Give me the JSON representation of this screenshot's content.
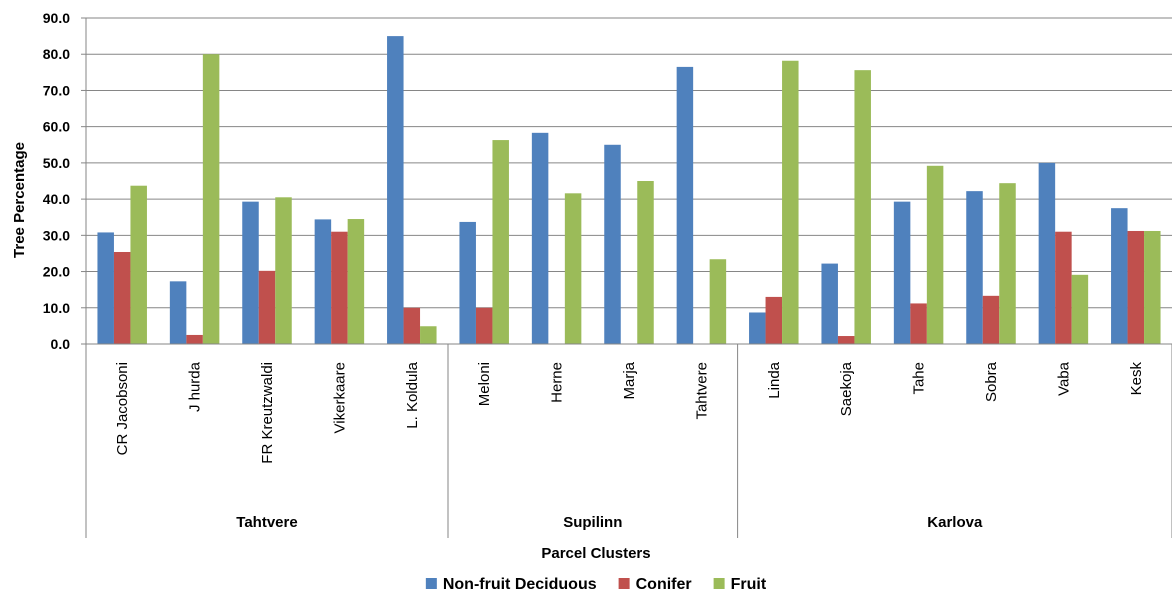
{
  "chart_data": {
    "type": "bar",
    "xlabel": "Parcel Clusters",
    "ylabel": "Tree Percentage",
    "ylim": [
      0,
      90
    ],
    "yticks": [
      "0.0",
      "10.0",
      "20.0",
      "30.0",
      "40.0",
      "50.0",
      "60.0",
      "70.0",
      "80.0",
      "90.0"
    ],
    "grid": true,
    "legend_position": "bottom",
    "groups": [
      {
        "label": "Tahtvere",
        "categories": [
          "CR Jacobsoni",
          "J hurda",
          "FR Kreutzwaldi",
          "Vikerkaare",
          "L. Koldula"
        ]
      },
      {
        "label": "Supilinn",
        "categories": [
          "Meloni",
          "Herne",
          "Marja",
          "Tahtvere"
        ]
      },
      {
        "label": "Karlova",
        "categories": [
          "Linda",
          "Saekoja",
          "Tahe",
          "Sobra",
          "Vaba",
          "Kesk"
        ]
      }
    ],
    "categories": [
      "CR Jacobsoni",
      "J hurda",
      "FR Kreutzwaldi",
      "Vikerkaare",
      "L. Koldula",
      "Meloni",
      "Herne",
      "Marja",
      "Tahtvere",
      "Linda",
      "Saekoja",
      "Tahe",
      "Sobra",
      "Vaba",
      "Kesk"
    ],
    "series": [
      {
        "name": "Non-fruit Deciduous",
        "color": "#4F81BD",
        "values": [
          30.8,
          17.3,
          39.3,
          34.4,
          85.0,
          33.7,
          58.3,
          55.0,
          76.5,
          8.7,
          22.2,
          39.3,
          42.2,
          50.0,
          37.5
        ]
      },
      {
        "name": "Conifer",
        "color": "#C0504D",
        "values": [
          25.4,
          2.5,
          20.2,
          31.0,
          10.0,
          10.0,
          0,
          0,
          0,
          13.0,
          2.2,
          11.2,
          13.3,
          31.0,
          31.2
        ]
      },
      {
        "name": "Fruit",
        "color": "#9BBB59",
        "values": [
          43.7,
          80.0,
          40.5,
          34.5,
          4.9,
          56.3,
          41.6,
          45.0,
          23.4,
          78.2,
          75.6,
          49.2,
          44.4,
          19.1,
          31.2
        ]
      }
    ]
  }
}
